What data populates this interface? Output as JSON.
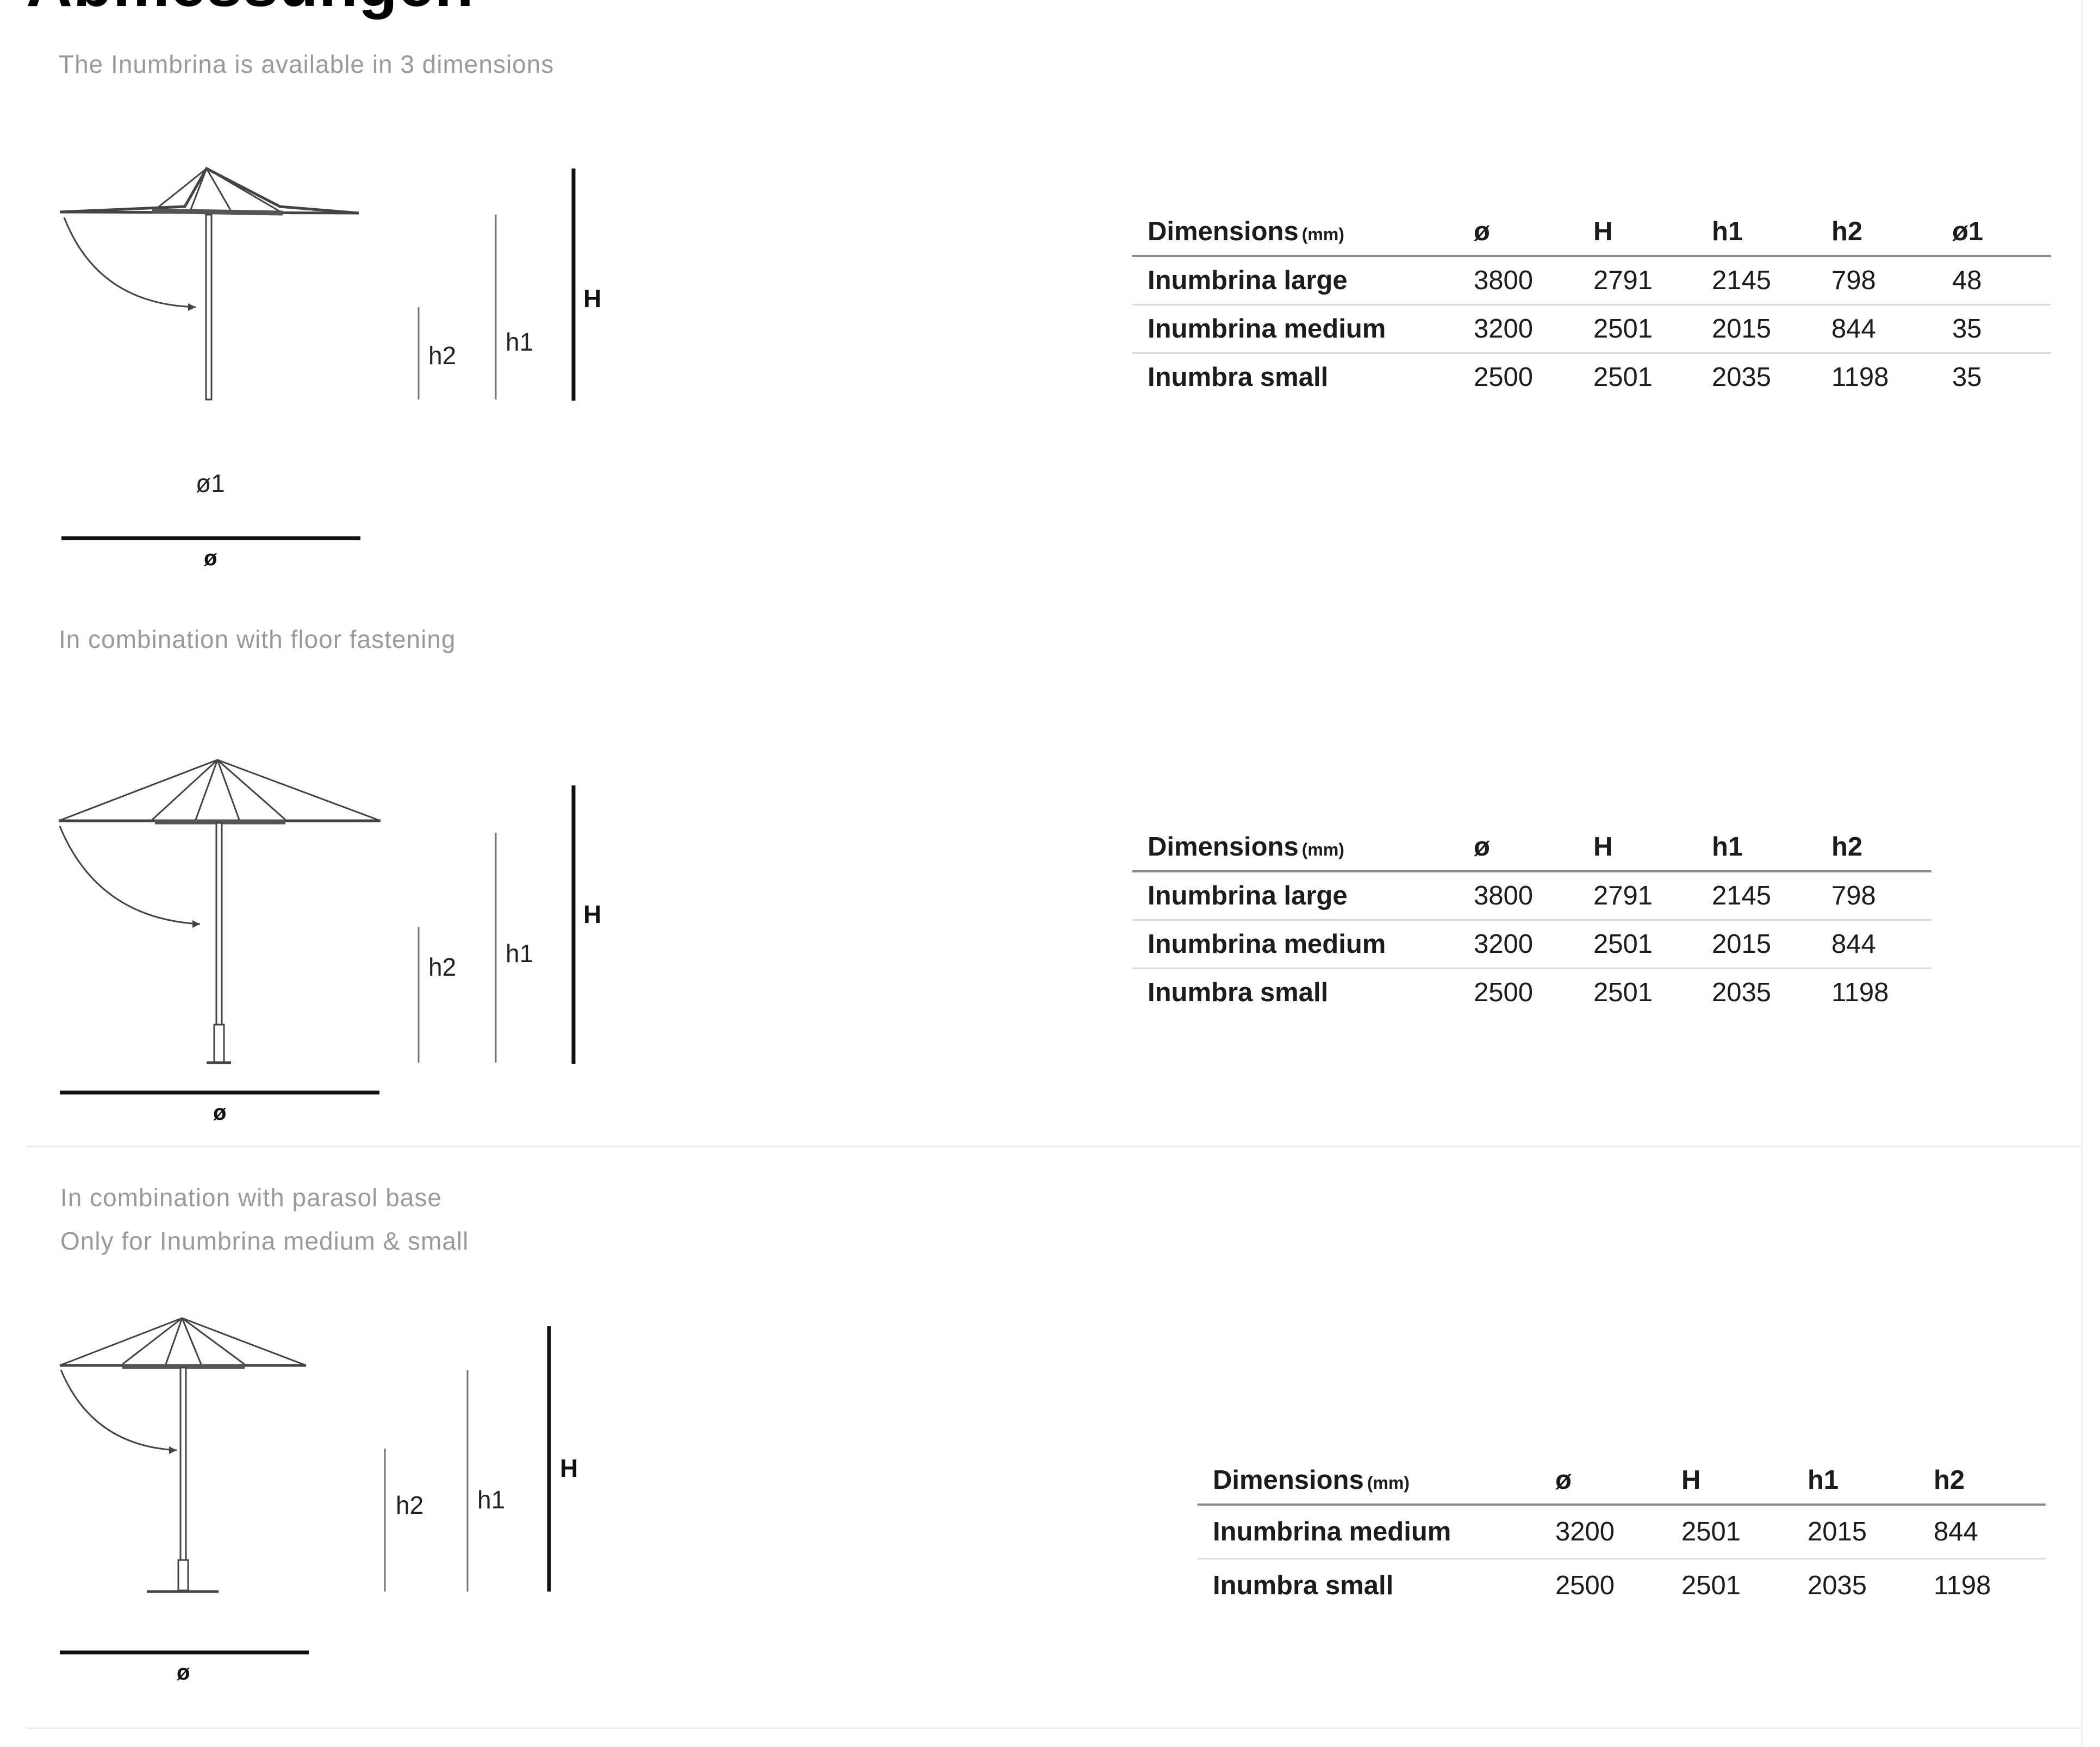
{
  "page": {
    "title": "Abmessungen"
  },
  "sections": [
    {
      "caption_lines": [
        "The Inumbrina is available in 3 dimensions"
      ],
      "diagram_labels": {
        "diameter": "ø",
        "inner_diameter": "ø1",
        "h2": "h2",
        "h1": "h1",
        "H": "H"
      },
      "table": {
        "header_label": "Dimensions",
        "header_unit": "(mm)",
        "columns": [
          "ø",
          "H",
          "h1",
          "h2",
          "ø1"
        ],
        "rows": [
          {
            "name": "Inumbrina large",
            "values": [
              "3800",
              "2791",
              "2145",
              "798",
              "48"
            ]
          },
          {
            "name": "Inumbrina medium",
            "values": [
              "3200",
              "2501",
              "2015",
              "844",
              "35"
            ]
          },
          {
            "name": "Inumbra small",
            "values": [
              "2500",
              "2501",
              "2035",
              "1198",
              "35"
            ]
          }
        ]
      }
    },
    {
      "caption_lines": [
        "In combination with floor fastening"
      ],
      "diagram_labels": {
        "diameter": "ø",
        "h2": "h2",
        "h1": "h1",
        "H": "H"
      },
      "table": {
        "header_label": "Dimensions",
        "header_unit": "(mm)",
        "columns": [
          "ø",
          "H",
          "h1",
          "h2"
        ],
        "rows": [
          {
            "name": "Inumbrina large",
            "values": [
              "3800",
              "2791",
              "2145",
              "798"
            ]
          },
          {
            "name": "Inumbrina medium",
            "values": [
              "3200",
              "2501",
              "2015",
              "844"
            ]
          },
          {
            "name": "Inumbra small",
            "values": [
              "2500",
              "2501",
              "2035",
              "1198"
            ]
          }
        ]
      }
    },
    {
      "caption_lines": [
        "In combination with parasol base",
        "Only for Inumbrina medium & small"
      ],
      "diagram_labels": {
        "diameter": "ø",
        "h2": "h2",
        "h1": "h1",
        "H": "H"
      },
      "table": {
        "header_label": "Dimensions",
        "header_unit": "(mm)",
        "columns": [
          "ø",
          "H",
          "h1",
          "h2"
        ],
        "rows": [
          {
            "name": "Inumbrina medium",
            "values": [
              "3200",
              "2501",
              "2015",
              "844"
            ]
          },
          {
            "name": "Inumbra small",
            "values": [
              "2500",
              "2501",
              "2035",
              "1198"
            ]
          }
        ]
      }
    }
  ]
}
